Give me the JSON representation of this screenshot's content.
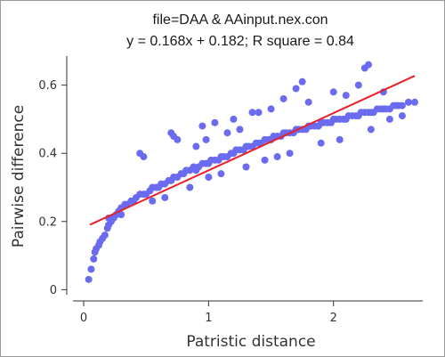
{
  "chart_data": {
    "type": "scatter",
    "title": "file=DAA & AAinput.nex.con",
    "subtitle": "y = 0.168x + 0.182; R square = 0.84",
    "xlabel": "Patristic distance",
    "ylabel": "Pairwise difference",
    "xlim": [
      -0.1,
      2.75
    ],
    "ylim": [
      -0.02,
      0.68
    ],
    "xticks": [
      0,
      1,
      2
    ],
    "xtick_labels": [
      "0",
      "1",
      "2"
    ],
    "yticks": [
      0,
      0.2,
      0.4,
      0.6
    ],
    "ytick_labels": [
      "0",
      "0.2",
      "0.4",
      "0.6"
    ],
    "grid": false,
    "legend": "none",
    "colors": {
      "points": "#6b6bf0",
      "fit_line": "#e8202a",
      "axis": "#333333"
    },
    "fit_line": {
      "slope": 0.168,
      "intercept": 0.182,
      "x_range": [
        0.05,
        2.65
      ]
    },
    "series": [
      {
        "x": [
          0.04,
          0.06,
          0.08,
          0.09,
          0.1,
          0.12,
          0.13,
          0.15,
          0.17,
          0.19,
          0.2,
          0.22,
          0.24,
          0.26,
          0.28,
          0.3,
          0.33,
          0.35,
          0.38,
          0.4,
          0.42,
          0.45,
          0.48,
          0.5,
          0.53,
          0.55,
          0.58,
          0.6,
          0.62,
          0.65,
          0.68,
          0.7,
          0.72,
          0.75,
          0.78,
          0.8,
          0.82,
          0.85,
          0.88,
          0.9,
          0.92,
          0.95,
          0.98,
          1.0,
          1.02,
          1.05,
          1.08,
          1.1,
          1.12,
          1.15,
          1.18,
          1.2,
          1.22,
          1.25,
          1.28,
          1.3,
          1.32,
          1.35,
          1.38,
          1.4,
          1.42,
          1.45,
          1.48,
          1.5,
          1.52,
          1.55,
          1.58,
          1.6,
          1.62,
          1.65,
          1.68,
          1.7,
          1.72,
          1.75,
          1.78,
          1.8,
          1.82,
          1.85,
          1.88,
          1.9,
          1.92,
          1.95,
          1.98,
          2.0,
          2.02,
          2.05,
          2.08,
          2.1,
          2.12,
          2.15,
          2.18,
          2.2,
          2.22,
          2.25,
          2.28,
          2.3,
          2.32,
          2.35,
          2.38,
          2.4,
          2.42,
          2.45,
          2.48,
          2.5,
          2.52,
          2.55,
          2.6,
          2.65,
          0.45,
          0.48,
          0.7,
          0.72,
          0.75,
          1.2,
          1.35,
          1.6,
          1.8,
          2.0,
          2.2,
          2.25,
          2.28,
          1.7,
          1.75,
          0.95,
          1.05,
          1.4,
          1.5,
          2.1,
          2.4,
          0.2,
          0.3,
          0.55,
          0.65,
          0.85,
          1.0,
          1.1,
          1.3,
          1.45,
          1.55,
          1.65,
          1.9,
          2.05,
          2.3,
          2.45,
          2.55,
          0.9,
          0.98,
          1.15,
          1.25
        ],
        "y": [
          0.03,
          0.06,
          0.09,
          0.11,
          0.12,
          0.13,
          0.14,
          0.15,
          0.16,
          0.18,
          0.19,
          0.2,
          0.21,
          0.22,
          0.23,
          0.24,
          0.25,
          0.25,
          0.26,
          0.26,
          0.27,
          0.28,
          0.28,
          0.28,
          0.29,
          0.3,
          0.3,
          0.3,
          0.31,
          0.31,
          0.32,
          0.32,
          0.33,
          0.33,
          0.34,
          0.34,
          0.35,
          0.35,
          0.36,
          0.35,
          0.36,
          0.37,
          0.37,
          0.37,
          0.38,
          0.38,
          0.38,
          0.39,
          0.39,
          0.39,
          0.4,
          0.4,
          0.41,
          0.41,
          0.41,
          0.42,
          0.42,
          0.42,
          0.43,
          0.43,
          0.43,
          0.44,
          0.44,
          0.44,
          0.45,
          0.45,
          0.45,
          0.46,
          0.46,
          0.46,
          0.46,
          0.47,
          0.47,
          0.47,
          0.47,
          0.48,
          0.48,
          0.48,
          0.48,
          0.49,
          0.49,
          0.49,
          0.49,
          0.5,
          0.5,
          0.5,
          0.5,
          0.5,
          0.51,
          0.51,
          0.51,
          0.51,
          0.52,
          0.52,
          0.52,
          0.52,
          0.52,
          0.53,
          0.53,
          0.53,
          0.53,
          0.53,
          0.54,
          0.54,
          0.54,
          0.54,
          0.55,
          0.55,
          0.4,
          0.39,
          0.46,
          0.45,
          0.44,
          0.5,
          0.52,
          0.56,
          0.55,
          0.58,
          0.6,
          0.65,
          0.66,
          0.59,
          0.61,
          0.48,
          0.49,
          0.52,
          0.53,
          0.57,
          0.58,
          0.21,
          0.22,
          0.26,
          0.27,
          0.3,
          0.33,
          0.34,
          0.36,
          0.38,
          0.39,
          0.4,
          0.43,
          0.44,
          0.47,
          0.5,
          0.51,
          0.42,
          0.44,
          0.46,
          0.47
        ]
      }
    ]
  }
}
